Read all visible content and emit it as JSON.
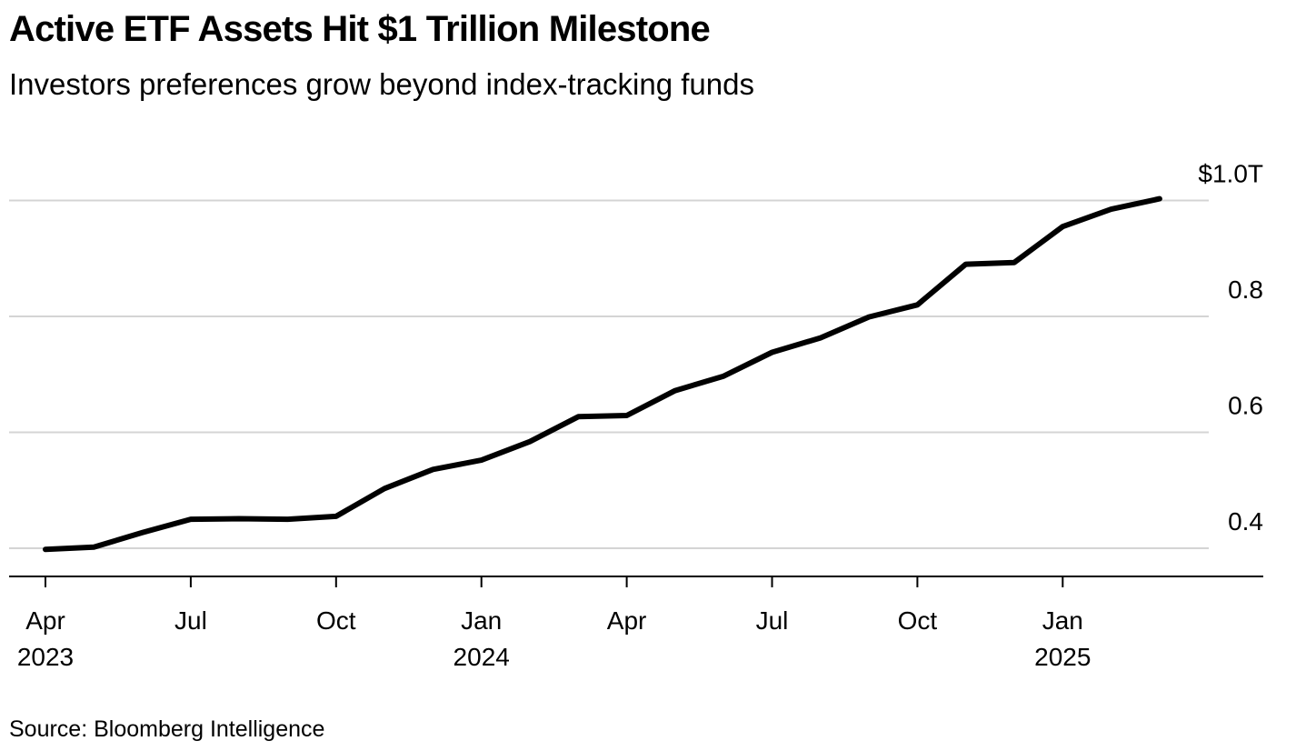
{
  "chart_data": {
    "type": "line",
    "title": "Active ETF Assets Hit $1 Trillion Milestone",
    "subtitle": "Investors preferences grow beyond index-tracking funds",
    "source": "Source: Bloomberg Intelligence",
    "xlabel": "",
    "ylabel": "",
    "ylim": [
      0.35,
      1.0
    ],
    "grid": true,
    "y_ticks": [
      {
        "value": 1.0,
        "label": "$1.0T"
      },
      {
        "value": 0.8,
        "label": "0.8"
      },
      {
        "value": 0.6,
        "label": "0.6"
      },
      {
        "value": 0.4,
        "label": "0.4"
      }
    ],
    "x_ticks": [
      {
        "index": 0,
        "label": "Apr",
        "year": "2023"
      },
      {
        "index": 3,
        "label": "Jul",
        "year": ""
      },
      {
        "index": 6,
        "label": "Oct",
        "year": ""
      },
      {
        "index": 9,
        "label": "Jan",
        "year": "2024"
      },
      {
        "index": 12,
        "label": "Apr",
        "year": ""
      },
      {
        "index": 15,
        "label": "Jul",
        "year": ""
      },
      {
        "index": 18,
        "label": "Oct",
        "year": ""
      },
      {
        "index": 21,
        "label": "Jan",
        "year": "2025"
      }
    ],
    "series": [
      {
        "name": "Active ETF Assets",
        "x": [
          "2023-04",
          "2023-05",
          "2023-06",
          "2023-07",
          "2023-08",
          "2023-09",
          "2023-10",
          "2023-11",
          "2023-12",
          "2024-01",
          "2024-02",
          "2024-03",
          "2024-04",
          "2024-05",
          "2024-06",
          "2024-07",
          "2024-08",
          "2024-09",
          "2024-10",
          "2024-11",
          "2024-12",
          "2025-01",
          "2025-02",
          "2025-03"
        ],
        "values": [
          0.398,
          0.402,
          0.427,
          0.45,
          0.451,
          0.45,
          0.455,
          0.503,
          0.536,
          0.552,
          0.584,
          0.627,
          0.629,
          0.672,
          0.697,
          0.738,
          0.763,
          0.799,
          0.82,
          0.89,
          0.893,
          0.955,
          0.985,
          1.003
        ]
      }
    ]
  }
}
